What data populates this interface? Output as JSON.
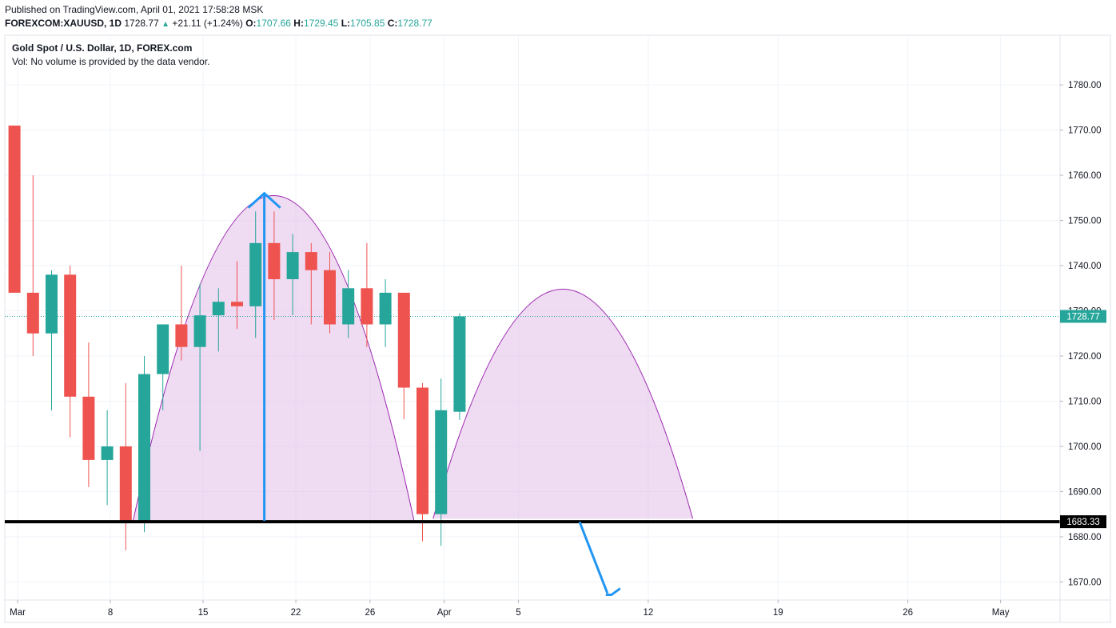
{
  "header": {
    "published": "Published on TradingView.com, April 01, 2021 17:58:28 MSK",
    "symbol": "FOREXCOM:XAUUSD, 1D",
    "last": "1728.77",
    "change": "+21.11 (+1.24%)",
    "o_label": "O:",
    "o_value": "1707.66",
    "h_label": "H:",
    "h_value": "1729.45",
    "l_label": "L:",
    "l_value": "1705.85",
    "c_label": "C:",
    "c_value": "1728.77"
  },
  "legend": {
    "title": "Gold Spot / U.S. Dollar, 1D, FOREX.com",
    "volume_note": "Vol: No volume is provided by the data vendor."
  },
  "colors": {
    "up": "#26a69a",
    "down": "#ef5350",
    "pattern_fill": "#e1bee7",
    "pattern_stroke": "#9c27b0",
    "arrow": "#2196f3",
    "support": "#000000",
    "last_price_line": "#26a69a",
    "grid": "#f0f3fa"
  },
  "chart_data": {
    "type": "candlestick",
    "y_axis": {
      "ticks": [
        "1670.00",
        "1680.00",
        "1690.00",
        "1700.00",
        "1710.00",
        "1720.00",
        "1730.00",
        "1740.00",
        "1750.00",
        "1760.00",
        "1770.00",
        "1780.00"
      ],
      "range": [
        1666,
        1791
      ]
    },
    "x_axis": {
      "ticks": [
        {
          "label": "Mar",
          "slot": 0.8
        },
        {
          "label": "8",
          "slot": 5.8
        },
        {
          "label": "15",
          "slot": 10.8
        },
        {
          "label": "22",
          "slot": 15.8
        },
        {
          "label": "26",
          "slot": 19.8
        },
        {
          "label": "Apr",
          "slot": 23.8
        },
        {
          "label": "5",
          "slot": 27.8
        },
        {
          "label": "12",
          "slot": 34.8
        },
        {
          "label": "19",
          "slot": 41.8
        },
        {
          "label": "26",
          "slot": 48.8
        },
        {
          "label": "May",
          "slot": 53.8
        }
      ]
    },
    "candles": [
      {
        "o": 1771,
        "h": 1771,
        "l": 1734,
        "c": 1734
      },
      {
        "o": 1734,
        "h": 1760,
        "l": 1720,
        "c": 1725
      },
      {
        "o": 1725,
        "h": 1739,
        "l": 1708,
        "c": 1738
      },
      {
        "o": 1738,
        "h": 1740,
        "l": 1702,
        "c": 1711
      },
      {
        "o": 1711,
        "h": 1723,
        "l": 1691,
        "c": 1697
      },
      {
        "o": 1697,
        "h": 1708,
        "l": 1687,
        "c": 1700
      },
      {
        "o": 1700,
        "h": 1714,
        "l": 1677,
        "c": 1683
      },
      {
        "o": 1683,
        "h": 1720,
        "l": 1681,
        "c": 1716
      },
      {
        "o": 1716,
        "h": 1727,
        "l": 1708,
        "c": 1727
      },
      {
        "o": 1727,
        "h": 1740,
        "l": 1719,
        "c": 1722
      },
      {
        "o": 1722,
        "h": 1736,
        "l": 1699,
        "c": 1729
      },
      {
        "o": 1729,
        "h": 1735,
        "l": 1721,
        "c": 1732
      },
      {
        "o": 1732,
        "h": 1741,
        "l": 1726,
        "c": 1731
      },
      {
        "o": 1731,
        "h": 1752,
        "l": 1724,
        "c": 1745
      },
      {
        "o": 1745,
        "h": 1752,
        "l": 1728,
        "c": 1737
      },
      {
        "o": 1737,
        "h": 1747,
        "l": 1729,
        "c": 1743
      },
      {
        "o": 1743,
        "h": 1745,
        "l": 1727,
        "c": 1739
      },
      {
        "o": 1739,
        "h": 1743,
        "l": 1725,
        "c": 1727
      },
      {
        "o": 1727,
        "h": 1739,
        "l": 1724,
        "c": 1735
      },
      {
        "o": 1735,
        "h": 1745,
        "l": 1722,
        "c": 1727
      },
      {
        "o": 1727,
        "h": 1737,
        "l": 1722,
        "c": 1734
      },
      {
        "o": 1734,
        "h": 1734,
        "l": 1706,
        "c": 1713
      },
      {
        "o": 1713,
        "h": 1714,
        "l": 1679,
        "c": 1685
      },
      {
        "o": 1685,
        "h": 1715,
        "l": 1678,
        "c": 1708
      },
      {
        "o": 1707.66,
        "h": 1729.45,
        "l": 1705.85,
        "c": 1728.77
      }
    ],
    "last_price": "1728.77",
    "support_level": "1683.33",
    "drawings": {
      "arc1": {
        "from_slot": 7,
        "to_slot": 22.2,
        "base": 1683,
        "peak": 1755.5
      },
      "arc2": {
        "from_slot": 23.2,
        "to_slot": 37.2,
        "base": 1684,
        "peak": 1734.8
      },
      "arrow_up": {
        "slot": 14.1,
        "from": 1683.5,
        "to": 1756
      },
      "arrow_down": {
        "from_slot": 31.1,
        "from": 1683.3,
        "to_slot": 32.6,
        "to": 1667.5
      }
    }
  }
}
